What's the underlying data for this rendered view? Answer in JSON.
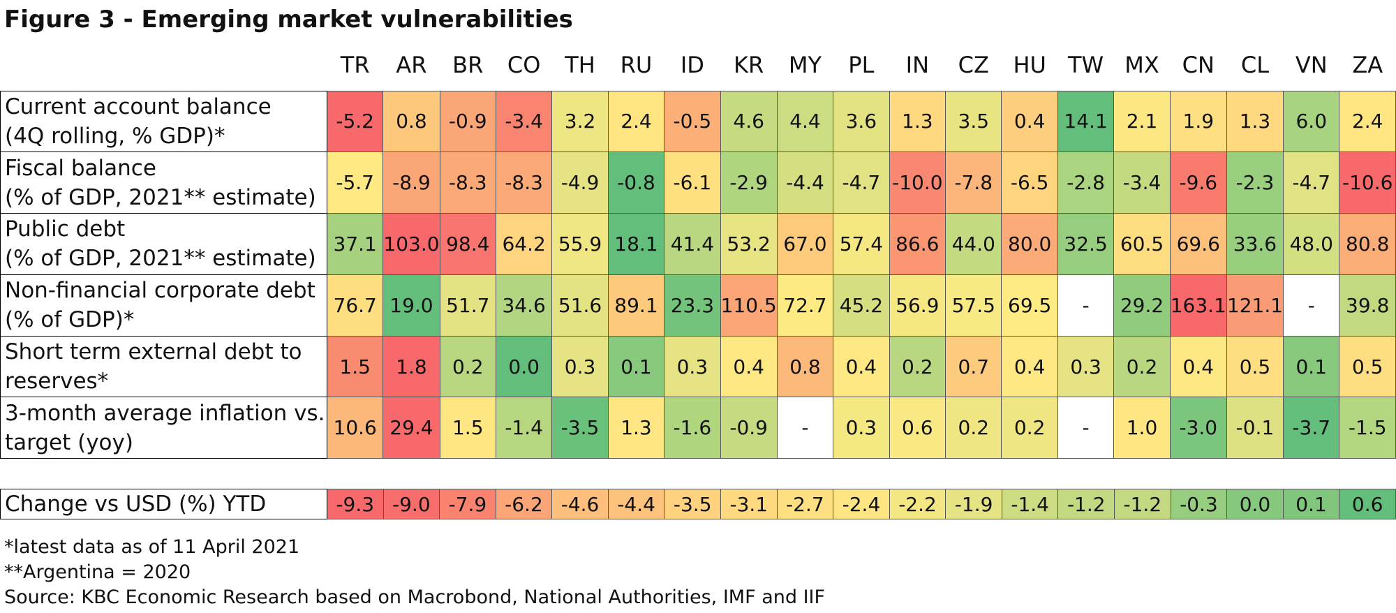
{
  "title": "Figure 3 - Emerging market vulnerabilities",
  "countries": [
    "TR",
    "AR",
    "BR",
    "CO",
    "TH",
    "RU",
    "ID",
    "KR",
    "MY",
    "PL",
    "IN",
    "CZ",
    "HU",
    "TW",
    "MX",
    "CN",
    "CL",
    "VN",
    "ZA"
  ],
  "rows": [
    {
      "label_line1": "Current account balance",
      "label_line2": "(4Q rolling, % GDP)*",
      "values": [
        "-5.2",
        "0.8",
        "-0.9",
        "-3.4",
        "3.2",
        "2.4",
        "-0.5",
        "4.6",
        "4.4",
        "3.6",
        "1.3",
        "3.5",
        "0.4",
        "14.1",
        "2.1",
        "1.9",
        "1.3",
        "6.0",
        "2.4"
      ],
      "colors": [
        "#f8696b",
        "#fdc77c",
        "#fba676",
        "#f98570",
        "#eee583",
        "#fee582",
        "#fcb077",
        "#c5da81",
        "#cadd82",
        "#e4e383",
        "#fed980",
        "#e8e482",
        "#fdce7e",
        "#63be7b",
        "#fde782",
        "#fedf81",
        "#fed980",
        "#a8d380",
        "#fee582"
      ]
    },
    {
      "label_line1": "Fiscal balance",
      "label_line2": "(% of GDP, 2021** estimate)",
      "values": [
        "-5.7",
        "-8.9",
        "-8.3",
        "-8.3",
        "-4.9",
        "-0.8",
        "-6.1",
        "-2.9",
        "-4.4",
        "-4.7",
        "-10.0",
        "-7.8",
        "-6.5",
        "-2.8",
        "-3.4",
        "-9.6",
        "-2.3",
        "-4.7",
        "-10.6"
      ],
      "colors": [
        "#fee983",
        "#fba676",
        "#fbaa77",
        "#fbaa77",
        "#e5e383",
        "#63be7b",
        "#fee081",
        "#b0d57f",
        "#d5df82",
        "#e0e283",
        "#f98771",
        "#fcb57a",
        "#fed47f",
        "#abd480",
        "#c3da81",
        "#f97b6e",
        "#99cf7e",
        "#e0e283",
        "#f8696b"
      ]
    },
    {
      "label_line1": "Public debt",
      "label_line2": "(% of GDP, 2021** estimate)",
      "values": [
        "37.1",
        "103.0",
        "98.4",
        "64.2",
        "55.9",
        "18.1",
        "41.4",
        "53.2",
        "67.0",
        "57.4",
        "86.6",
        "44.0",
        "80.0",
        "32.5",
        "60.5",
        "69.6",
        "33.6",
        "48.0",
        "80.8"
      ],
      "colors": [
        "#a6d27f",
        "#f8696b",
        "#f97670",
        "#fed47f",
        "#f0e683",
        "#63be7b",
        "#b8d780",
        "#e6e483",
        "#fecb7d",
        "#f5e883",
        "#fa9772",
        "#c3da81",
        "#fbab77",
        "#97cd7e",
        "#fede81",
        "#fdc17b",
        "#9ace7f",
        "#d4df82",
        "#fbad78"
      ]
    },
    {
      "label_line1": "Non-financial corporate debt",
      "label_line2": "(% of GDP)*",
      "values": [
        "76.7",
        "19.0",
        "51.7",
        "34.6",
        "51.6",
        "89.1",
        "23.3",
        "110.5",
        "72.7",
        "45.2",
        "56.9",
        "57.5",
        "69.5",
        "-",
        "29.2",
        "163.1",
        "121.1",
        "-",
        "39.8"
      ],
      "colors": [
        "#fede81",
        "#63be7b",
        "#e4e383",
        "#b1d580",
        "#e4e383",
        "#fdca7d",
        "#74c37c",
        "#fba576",
        "#feea83",
        "#d5df82",
        "#f5e883",
        "#f7e984",
        "#ffeb84",
        "#ffffff",
        "#90cb7e",
        "#f8696b",
        "#f99b74",
        "#ffffff",
        "#c2d981"
      ]
    },
    {
      "label_line1": "Short term external debt  to",
      "label_line2": "reserves*",
      "values": [
        "1.5",
        "1.8",
        "0.2",
        "0.0",
        "0.3",
        "0.1",
        "0.3",
        "0.4",
        "0.8",
        "0.4",
        "0.2",
        "0.7",
        "0.4",
        "0.3",
        "0.2",
        "0.4",
        "0.5",
        "0.1",
        "0.5"
      ],
      "colors": [
        "#f98b71",
        "#f8696b",
        "#b8d780",
        "#63be7b",
        "#e5e383",
        "#88c97e",
        "#e5e383",
        "#fde883",
        "#fcba7a",
        "#fde883",
        "#b8d780",
        "#fdcb7e",
        "#fde883",
        "#e5e383",
        "#b8d780",
        "#fde883",
        "#fede81",
        "#88c97e",
        "#fede81"
      ]
    },
    {
      "label_line1": "3-month average inflation vs.",
      "label_line2": "target (yoy)",
      "values": [
        "10.6",
        "29.4",
        "1.5",
        "-1.4",
        "-3.5",
        "1.3",
        "-1.6",
        "-0.9",
        "-",
        "0.3",
        "0.6",
        "0.2",
        "0.2",
        "-",
        "1.0",
        "-3.0",
        "-0.1",
        "-3.7",
        "-1.5"
      ],
      "colors": [
        "#fcb87a",
        "#f8696b",
        "#fee783",
        "#b6d680",
        "#6ac17c",
        "#fde683",
        "#b0d57f",
        "#c6db81",
        "#ffffff",
        "#f4e883",
        "#f8e984",
        "#efe683",
        "#efe683",
        "#ffffff",
        "#fee783",
        "#7cc57d",
        "#dde182",
        "#63be7b",
        "#b3d680"
      ]
    }
  ],
  "usd_row": {
    "label": "Change vs USD (%) YTD",
    "values": [
      "-9.3",
      "-9.0",
      "-7.9",
      "-6.2",
      "-4.6",
      "-4.4",
      "-3.5",
      "-3.1",
      "-2.7",
      "-2.4",
      "-2.2",
      "-1.9",
      "-1.4",
      "-1.2",
      "-1.2",
      "-0.3",
      "0.0",
      "0.1",
      "0.6"
    ],
    "colors": [
      "#f8696b",
      "#f86e6c",
      "#fa8370",
      "#fba476",
      "#fdbf7b",
      "#fdc27c",
      "#fed27f",
      "#fed980",
      "#fee082",
      "#fde583",
      "#f3e783",
      "#e5e383",
      "#ccdc82",
      "#c2d981",
      "#c2d981",
      "#96cd7e",
      "#86c87d",
      "#80c77d",
      "#63be7b"
    ]
  },
  "footnotes": [
    "*latest data as of 11 April 2021",
    "**Argentina = 2020",
    "Source: KBC Economic Research based on Macrobond, National Authorities, IMF and IIF"
  ],
  "chart_data": {
    "type": "table",
    "title": "Figure 3 - Emerging market vulnerabilities",
    "columns": [
      "TR",
      "AR",
      "BR",
      "CO",
      "TH",
      "RU",
      "ID",
      "KR",
      "MY",
      "PL",
      "IN",
      "CZ",
      "HU",
      "TW",
      "MX",
      "CN",
      "CL",
      "VN",
      "ZA"
    ],
    "series": [
      {
        "name": "Current account balance (4Q rolling, % GDP)*",
        "values": [
          -5.2,
          0.8,
          -0.9,
          -3.4,
          3.2,
          2.4,
          -0.5,
          4.6,
          4.4,
          3.6,
          1.3,
          3.5,
          0.4,
          14.1,
          2.1,
          1.9,
          1.3,
          6.0,
          2.4
        ]
      },
      {
        "name": "Fiscal balance (% of GDP, 2021** estimate)",
        "values": [
          -5.7,
          -8.9,
          -8.3,
          -8.3,
          -4.9,
          -0.8,
          -6.1,
          -2.9,
          -4.4,
          -4.7,
          -10.0,
          -7.8,
          -6.5,
          -2.8,
          -3.4,
          -9.6,
          -2.3,
          -4.7,
          -10.6
        ]
      },
      {
        "name": "Public debt (% of GDP, 2021** estimate)",
        "values": [
          37.1,
          103.0,
          98.4,
          64.2,
          55.9,
          18.1,
          41.4,
          53.2,
          67.0,
          57.4,
          86.6,
          44.0,
          80.0,
          32.5,
          60.5,
          69.6,
          33.6,
          48.0,
          80.8
        ]
      },
      {
        "name": "Non-financial corporate debt (% of GDP)*",
        "values": [
          76.7,
          19.0,
          51.7,
          34.6,
          51.6,
          89.1,
          23.3,
          110.5,
          72.7,
          45.2,
          56.9,
          57.5,
          69.5,
          null,
          29.2,
          163.1,
          121.1,
          null,
          39.8
        ]
      },
      {
        "name": "Short term external debt  to reserves*",
        "values": [
          1.5,
          1.8,
          0.2,
          0.0,
          0.3,
          0.1,
          0.3,
          0.4,
          0.8,
          0.4,
          0.2,
          0.7,
          0.4,
          0.3,
          0.2,
          0.4,
          0.5,
          0.1,
          0.5
        ]
      },
      {
        "name": "3-month average inflation vs. target (yoy)",
        "values": [
          10.6,
          29.4,
          1.5,
          -1.4,
          -3.5,
          1.3,
          -1.6,
          -0.9,
          null,
          0.3,
          0.6,
          0.2,
          0.2,
          null,
          1.0,
          -3.0,
          -0.1,
          -3.7,
          -1.5
        ]
      },
      {
        "name": "Change vs USD (%) YTD",
        "values": [
          -9.3,
          -9.0,
          -7.9,
          -6.2,
          -4.6,
          -4.4,
          -3.5,
          -3.1,
          -2.7,
          -2.4,
          -2.2,
          -1.9,
          -1.4,
          -1.2,
          -1.2,
          -0.3,
          0.0,
          0.1,
          0.6
        ]
      }
    ]
  }
}
